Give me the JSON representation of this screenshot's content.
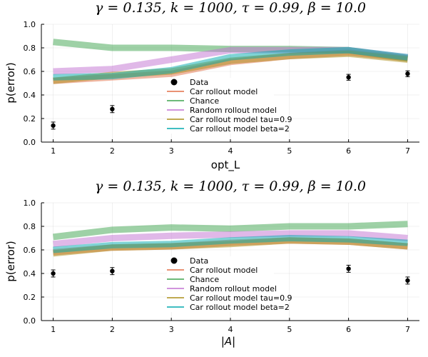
{
  "chart_data": [
    {
      "type": "line",
      "title": "γ = 0.135, k = 1000, τ = 0.99, β = 10.0",
      "xlabel": "opt_L",
      "ylabel": "p(error)",
      "xlim": [
        0.8,
        7.2
      ],
      "ylim": [
        0.0,
        1.0
      ],
      "xticks": [
        "1",
        "2",
        "3",
        "4",
        "5",
        "6",
        "7"
      ],
      "yticks": [
        "0.0",
        "0.2",
        "0.4",
        "0.6",
        "0.8",
        "1.0"
      ],
      "x": [
        1,
        2,
        3,
        4,
        5,
        6,
        7
      ],
      "data": {
        "name": "Data",
        "y": [
          0.14,
          0.28,
          null,
          null,
          null,
          0.55,
          0.58
        ],
        "err": [
          0.03,
          0.03,
          null,
          null,
          null,
          0.025,
          0.025
        ]
      },
      "series": [
        {
          "name": "Car rollout model",
          "color": "#e26f46",
          "values": [
            0.52,
            0.55,
            0.58,
            0.68,
            0.73,
            0.76,
            0.71
          ]
        },
        {
          "name": "Chance",
          "color": "#3da44d",
          "values": [
            0.85,
            0.8,
            0.8,
            0.79,
            0.79,
            0.78,
            0.71
          ]
        },
        {
          "name": "Random rollout model",
          "color": "#c271d2",
          "values": [
            0.6,
            0.62,
            0.7,
            0.78,
            0.78,
            0.78,
            0.72
          ]
        },
        {
          "name": "Car rollout model tau=0.9",
          "color": "#ac8d18",
          "values": [
            0.52,
            0.57,
            0.6,
            0.69,
            0.73,
            0.75,
            0.7
          ]
        },
        {
          "name": "Car rollout model beta=2",
          "color": "#00a9ad",
          "values": [
            0.55,
            0.56,
            0.61,
            0.72,
            0.76,
            0.78,
            0.72
          ]
        }
      ],
      "legend_position": "center-bottom"
    },
    {
      "type": "line",
      "title": "γ = 0.135, k = 1000, τ = 0.99, β = 10.0",
      "xlabel": "|A|",
      "ylabel": "p(error)",
      "xlim": [
        0.8,
        7.2
      ],
      "ylim": [
        0.0,
        1.0
      ],
      "xticks": [
        "1",
        "2",
        "3",
        "4",
        "5",
        "6",
        "7"
      ],
      "yticks": [
        "0.0",
        "0.2",
        "0.4",
        "0.6",
        "0.8",
        "1.0"
      ],
      "x": [
        1,
        2,
        3,
        4,
        5,
        6,
        7
      ],
      "data": {
        "name": "Data",
        "y": [
          0.4,
          0.42,
          null,
          null,
          null,
          0.44,
          0.34
        ],
        "err": [
          0.03,
          0.03,
          null,
          null,
          null,
          0.03,
          0.03
        ]
      },
      "series": [
        {
          "name": "Car rollout model",
          "color": "#e26f46",
          "values": [
            0.58,
            0.62,
            0.63,
            0.66,
            0.68,
            0.67,
            0.63
          ]
        },
        {
          "name": "Chance",
          "color": "#3da44d",
          "values": [
            0.71,
            0.77,
            0.79,
            0.78,
            0.8,
            0.8,
            0.82
          ]
        },
        {
          "name": "Random rollout model",
          "color": "#c271d2",
          "values": [
            0.65,
            0.7,
            0.72,
            0.73,
            0.74,
            0.74,
            0.7
          ]
        },
        {
          "name": "Car rollout model tau=0.9",
          "color": "#ac8d18",
          "values": [
            0.57,
            0.62,
            0.63,
            0.65,
            0.68,
            0.67,
            0.63
          ]
        },
        {
          "name": "Car rollout model beta=2",
          "color": "#00a9ad",
          "values": [
            0.6,
            0.64,
            0.65,
            0.68,
            0.7,
            0.69,
            0.66
          ]
        }
      ],
      "legend_position": "center-bottom"
    }
  ]
}
